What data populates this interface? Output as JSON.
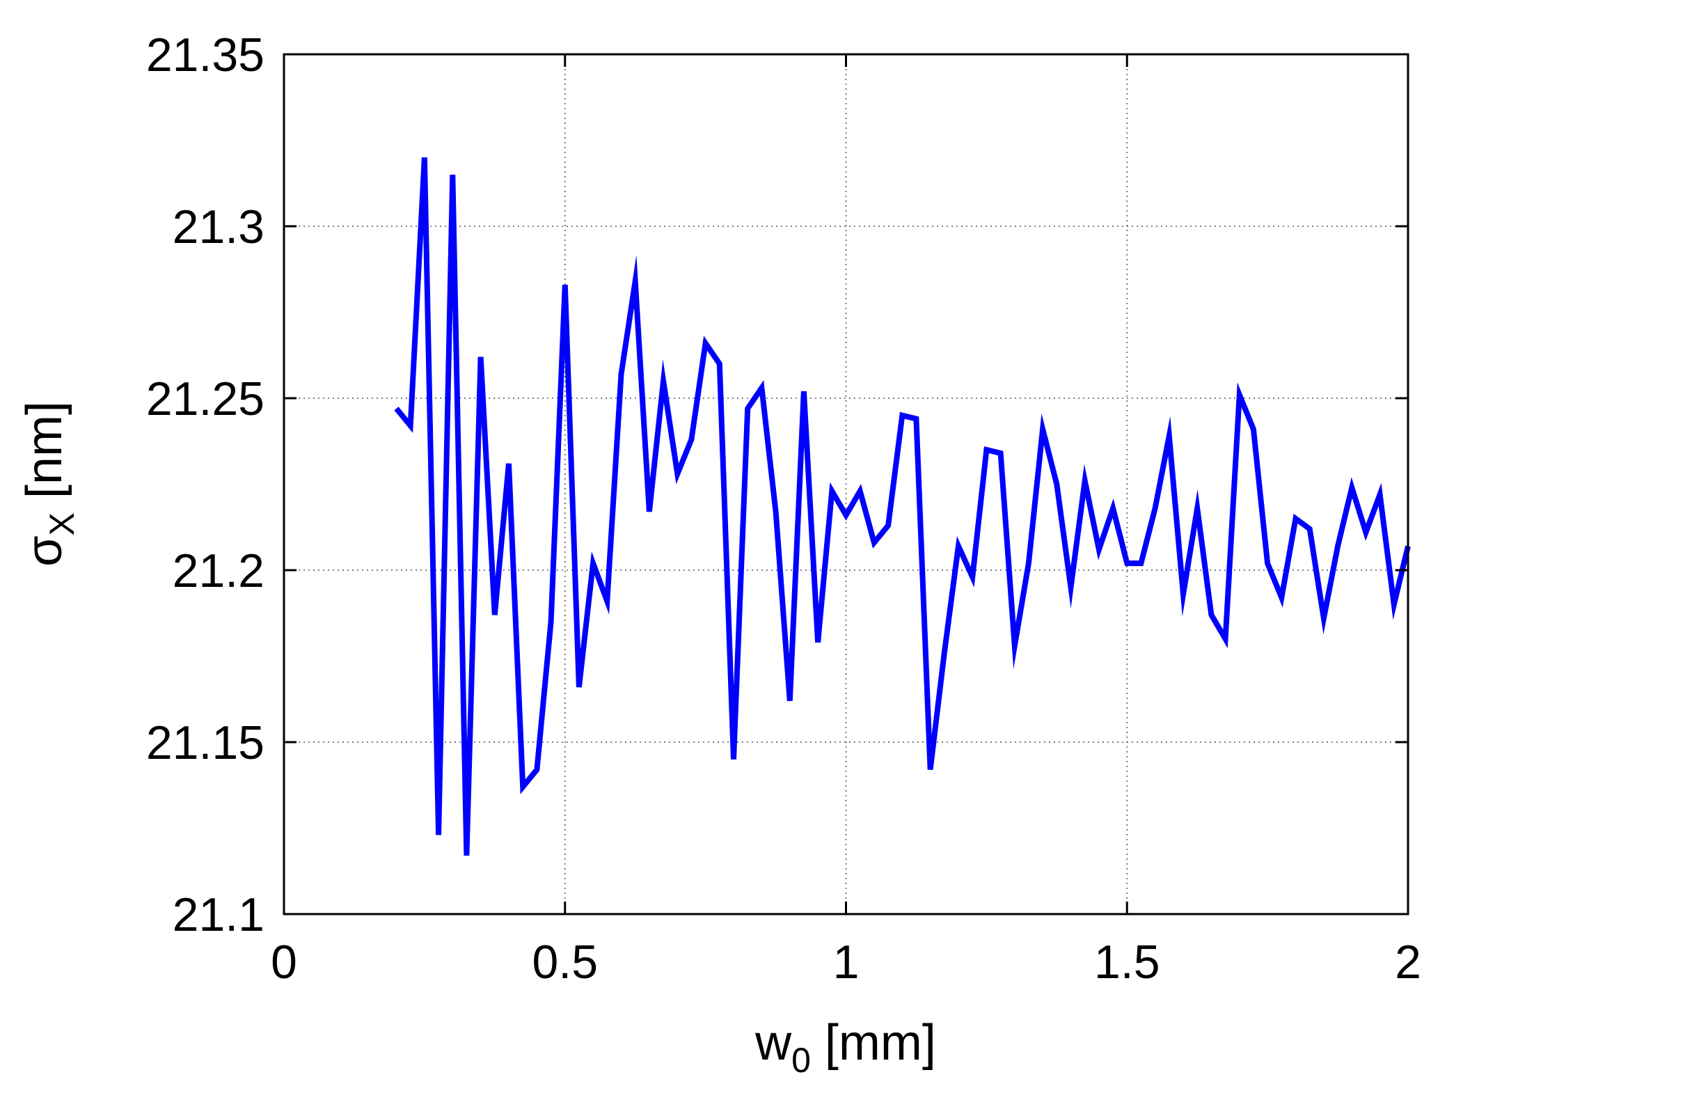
{
  "chart_data": {
    "type": "line",
    "title": "",
    "xlabel": {
      "main": "w",
      "sub": "0",
      "unit": " [mm]"
    },
    "ylabel": {
      "main": "σ",
      "sub": "X",
      "unit": " [nm]"
    },
    "xlim": [
      0,
      2
    ],
    "ylim": [
      21.1,
      21.35
    ],
    "x_ticks": [
      0,
      0.5,
      1,
      1.5,
      2
    ],
    "x_tick_labels": [
      "0",
      "0.5",
      "1",
      "1.5",
      "2"
    ],
    "y_ticks": [
      21.1,
      21.15,
      21.2,
      21.25,
      21.3,
      21.35
    ],
    "y_tick_labels": [
      "21.1",
      "21.15",
      "21.2",
      "21.25",
      "21.3",
      "21.35"
    ],
    "grid": true,
    "line_color": "#0000ff",
    "series": [
      {
        "x": [
          0.2,
          0.225,
          0.25,
          0.275,
          0.3,
          0.325,
          0.35,
          0.375,
          0.4,
          0.425,
          0.45,
          0.475,
          0.5,
          0.525,
          0.55,
          0.575,
          0.6,
          0.625,
          0.65,
          0.675,
          0.7,
          0.725,
          0.75,
          0.775,
          0.8,
          0.825,
          0.85,
          0.875,
          0.9,
          0.925,
          0.95,
          0.975,
          1.0,
          1.025,
          1.05,
          1.075,
          1.1,
          1.125,
          1.15,
          1.175,
          1.2,
          1.225,
          1.25,
          1.275,
          1.3,
          1.325,
          1.35,
          1.375,
          1.4,
          1.425,
          1.45,
          1.475,
          1.5,
          1.525,
          1.55,
          1.575,
          1.6,
          1.625,
          1.65,
          1.675,
          1.7,
          1.725,
          1.75,
          1.775,
          1.8,
          1.825,
          1.85,
          1.875,
          1.9,
          1.925,
          1.95,
          1.975,
          2.0
        ],
        "y": [
          21.247,
          21.242,
          21.32,
          21.123,
          21.315,
          21.117,
          21.262,
          21.187,
          21.231,
          21.137,
          21.142,
          21.185,
          21.283,
          21.166,
          21.202,
          21.191,
          21.257,
          21.284,
          21.217,
          21.255,
          21.228,
          21.238,
          21.266,
          21.26,
          21.145,
          21.247,
          21.253,
          21.217,
          21.162,
          21.252,
          21.179,
          21.223,
          21.216,
          21.223,
          21.208,
          21.213,
          21.245,
          21.244,
          21.142,
          21.176,
          21.207,
          21.198,
          21.235,
          21.234,
          21.178,
          21.202,
          21.241,
          21.225,
          21.195,
          21.226,
          21.206,
          21.218,
          21.202,
          21.202,
          21.218,
          21.239,
          21.193,
          21.218,
          21.187,
          21.18,
          21.251,
          21.241,
          21.202,
          21.192,
          21.215,
          21.212,
          21.186,
          21.207,
          21.224,
          21.211,
          21.222,
          21.19,
          21.207
        ]
      }
    ]
  }
}
